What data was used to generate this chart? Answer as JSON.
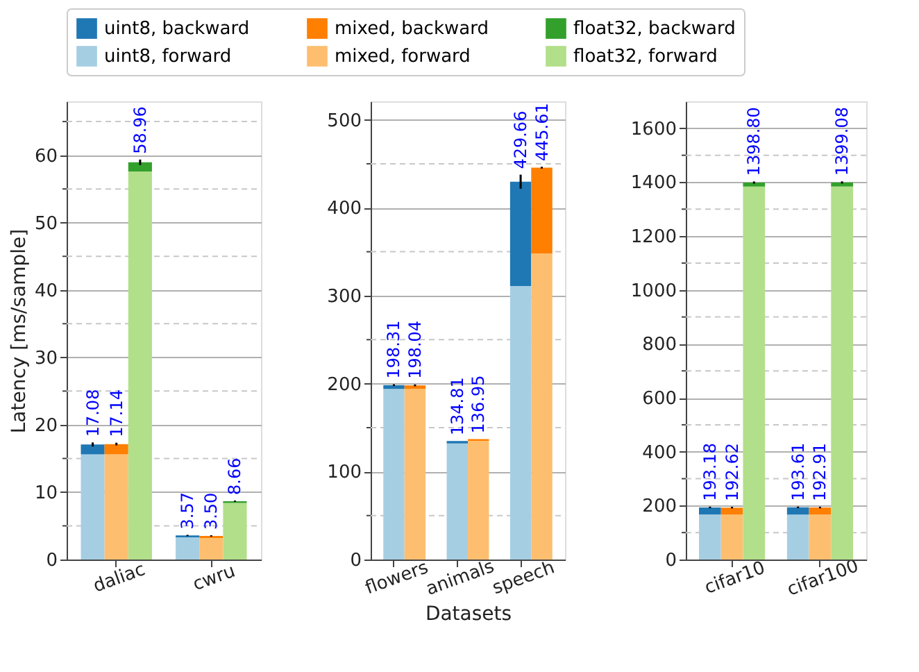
{
  "chart_data": [
    {
      "type": "bar",
      "stacked": true,
      "ylabel": "Latency [ms/sample]",
      "legend": "top",
      "grid": true,
      "categories": [
        null,
        "daliac",
        null,
        null,
        null,
        "cwru",
        null
      ],
      "ylim": [
        0,
        68
      ],
      "yticks": [
        0,
        10,
        20,
        30,
        40,
        50,
        60,
        {
          "value": 5,
          "label": null
        },
        {
          "value": 15,
          "label": null
        },
        {
          "value": 25,
          "label": null
        },
        {
          "value": 35,
          "label": null
        },
        {
          "value": 45,
          "label": null
        },
        {
          "value": 55,
          "label": null
        },
        {
          "value": 65,
          "label": null
        }
      ],
      "totals": [
        "17.08",
        "17.14",
        "58.96",
        null,
        "3.57",
        "3.50",
        "8.66"
      ],
      "series": [
        {
          "name": "uint8, forward",
          "color": "#a6cee3",
          "values": [
            15.6,
            null,
            null,
            null,
            3.3,
            null,
            null
          ]
        },
        {
          "name": "uint8, backward",
          "color": "#1f78b4",
          "values": [
            1.48,
            null,
            null,
            null,
            0.27,
            null,
            null
          ],
          "errors": [
            0.3,
            null,
            null,
            null,
            0.1,
            null,
            null
          ]
        },
        {
          "name": "mixed, forward",
          "color": "#fdbf6f",
          "values": [
            null,
            15.6,
            null,
            null,
            null,
            3.2,
            null
          ]
        },
        {
          "name": "mixed, backward",
          "color": "#ff7f00",
          "values": [
            null,
            1.54,
            null,
            null,
            null,
            0.3,
            null
          ],
          "errors": [
            null,
            0.2,
            null,
            null,
            null,
            0.1,
            null
          ]
        },
        {
          "name": "float32, forward",
          "color": "#b2df8a",
          "values": [
            null,
            null,
            57.6,
            null,
            null,
            null,
            8.4
          ]
        },
        {
          "name": "float32, backward",
          "color": "#33a02c",
          "values": [
            null,
            null,
            1.36,
            null,
            null,
            null,
            0.26
          ],
          "errors": [
            null,
            null,
            0.4,
            null,
            null,
            null,
            0.1
          ]
        }
      ]
    },
    {
      "type": "bar",
      "stacked": true,
      "xlabel": "Datasets",
      "grid": true,
      "categories": [
        "flowers",
        null,
        null,
        "animals",
        null,
        null,
        "speech",
        null
      ],
      "ylim": [
        0,
        521
      ],
      "yticks": [
        0,
        100,
        200,
        300,
        400,
        500,
        {
          "value": 50,
          "label": null
        },
        {
          "value": 150,
          "label": null
        },
        {
          "value": 250,
          "label": null
        },
        {
          "value": 350,
          "label": null
        },
        {
          "value": 450,
          "label": null
        }
      ],
      "totals": [
        "198.31",
        "198.04",
        null,
        "134.81",
        "136.95",
        null,
        "429.66",
        "445.61"
      ],
      "series": [
        {
          "color": "#a6cee3",
          "values": [
            194,
            null,
            null,
            132,
            null,
            null,
            311,
            null
          ]
        },
        {
          "color": "#1f78b4",
          "values": [
            4.31,
            null,
            null,
            2.81,
            null,
            null,
            118.66,
            null
          ],
          "errors": [
            1,
            null,
            null,
            null,
            null,
            null,
            8,
            null
          ]
        },
        {
          "color": "#fdbf6f",
          "values": [
            null,
            194,
            null,
            null,
            135,
            null,
            null,
            348
          ]
        },
        {
          "color": "#ff7f00",
          "values": [
            null,
            4.04,
            null,
            null,
            1.95,
            null,
            null,
            97.61
          ],
          "errors": [
            null,
            1,
            null,
            null,
            null,
            null,
            null,
            1
          ]
        }
      ]
    },
    {
      "type": "bar",
      "stacked": true,
      "grid": true,
      "categories": [
        null,
        "cifar10",
        null,
        null,
        null,
        "cifar100",
        null
      ],
      "ylim": [
        0,
        1700
      ],
      "yticks": [
        0,
        200,
        400,
        600,
        800,
        {
          "value": 1000,
          "label": "1000"
        },
        {
          "value": 1200,
          "label": "1200"
        },
        {
          "value": 1400,
          "label": "1400"
        },
        {
          "value": 1600,
          "label": "1600"
        },
        {
          "value": 100,
          "label": null
        },
        {
          "value": 300,
          "label": null
        },
        {
          "value": 500,
          "label": null
        },
        {
          "value": 700,
          "label": null
        },
        {
          "value": 900,
          "label": null
        },
        {
          "value": 1100,
          "label": null
        },
        {
          "value": 1300,
          "label": null
        },
        {
          "value": 1500,
          "label": null
        }
      ],
      "totals": [
        "193.18",
        "192.62",
        "1398.80",
        null,
        "193.61",
        "192.91",
        "1399.08"
      ],
      "series": [
        {
          "color": "#a6cee3",
          "values": [
            167,
            null,
            null,
            null,
            167,
            null,
            null
          ]
        },
        {
          "color": "#1f78b4",
          "values": [
            26.18,
            null,
            null,
            null,
            26.61,
            null,
            null
          ],
          "errors": [
            3,
            null,
            null,
            null,
            3,
            null,
            null
          ]
        },
        {
          "color": "#fdbf6f",
          "values": [
            null,
            167,
            null,
            null,
            null,
            167,
            null
          ]
        },
        {
          "color": "#ff7f00",
          "values": [
            null,
            25.62,
            null,
            null,
            null,
            25.91,
            null
          ],
          "errors": [
            null,
            3,
            null,
            null,
            null,
            3,
            null
          ]
        },
        {
          "color": "#b2df8a",
          "values": [
            null,
            null,
            1384,
            null,
            null,
            null,
            1384
          ]
        },
        {
          "color": "#33a02c",
          "values": [
            null,
            null,
            14.8,
            null,
            null,
            null,
            15.08
          ],
          "errors": [
            null,
            null,
            4,
            null,
            null,
            null,
            4
          ]
        }
      ]
    }
  ]
}
